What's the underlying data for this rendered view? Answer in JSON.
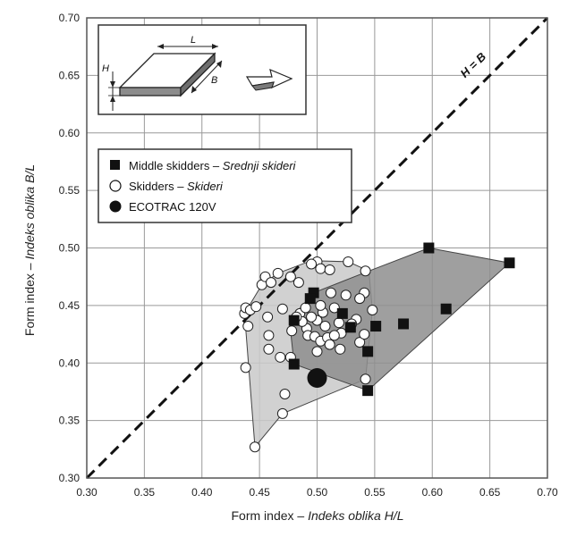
{
  "chart_data": {
    "type": "scatter",
    "xlabel_prefix": "Form index – ",
    "xlabel_italic": "Indeks oblika  H/L",
    "ylabel_prefix": "Form index – ",
    "ylabel_italic": "Indeks oblika  B/L",
    "xlim": [
      0.3,
      0.7
    ],
    "ylim": [
      0.3,
      0.7
    ],
    "xticks": [
      "0.30",
      "0.35",
      "0.40",
      "0.45",
      "0.50",
      "0.55",
      "0.60",
      "0.65",
      "0.70"
    ],
    "yticks": [
      "0.30",
      "0.35",
      "0.40",
      "0.45",
      "0.50",
      "0.55",
      "0.60",
      "0.65",
      "0.70"
    ],
    "grid": true,
    "diagonal_label": "H = B",
    "inset_labels": {
      "H": "H",
      "L": "L",
      "B": "B"
    },
    "legend": [
      {
        "marker": "square",
        "text": "Middle skidders – ",
        "italic": "Srednji skideri"
      },
      {
        "marker": "open-circle",
        "text": "Skidders – ",
        "italic": "Skideri"
      },
      {
        "marker": "filled-circle",
        "text": "ECOTRAC 120V",
        "italic": ""
      }
    ],
    "series": [
      {
        "name": "Middle skidders – Srednji skideri",
        "marker": "square",
        "points": [
          [
            0.597,
            0.5
          ],
          [
            0.667,
            0.487
          ],
          [
            0.612,
            0.447
          ],
          [
            0.575,
            0.434
          ],
          [
            0.551,
            0.432
          ],
          [
            0.529,
            0.431
          ],
          [
            0.544,
            0.41
          ],
          [
            0.48,
            0.399
          ],
          [
            0.544,
            0.376
          ],
          [
            0.48,
            0.437
          ],
          [
            0.497,
            0.461
          ],
          [
            0.494,
            0.456
          ],
          [
            0.522,
            0.443
          ]
        ],
        "hull": [
          [
            0.597,
            0.5
          ],
          [
            0.667,
            0.487
          ],
          [
            0.544,
            0.376
          ],
          [
            0.48,
            0.399
          ],
          [
            0.476,
            0.437
          ],
          [
            0.497,
            0.461
          ],
          [
            0.545,
            0.48
          ]
        ]
      },
      {
        "name": "Skidders – Skideri",
        "marker": "open-circle",
        "points": [
          [
            0.446,
            0.327
          ],
          [
            0.47,
            0.356
          ],
          [
            0.472,
            0.373
          ],
          [
            0.438,
            0.396
          ],
          [
            0.477,
            0.405
          ],
          [
            0.468,
            0.405
          ],
          [
            0.458,
            0.412
          ],
          [
            0.44,
            0.432
          ],
          [
            0.437,
            0.443
          ],
          [
            0.438,
            0.448
          ],
          [
            0.442,
            0.446
          ],
          [
            0.447,
            0.449
          ],
          [
            0.457,
            0.44
          ],
          [
            0.458,
            0.424
          ],
          [
            0.452,
            0.468
          ],
          [
            0.455,
            0.475
          ],
          [
            0.46,
            0.47
          ],
          [
            0.466,
            0.478
          ],
          [
            0.477,
            0.475
          ],
          [
            0.484,
            0.47
          ],
          [
            0.5,
            0.488
          ],
          [
            0.495,
            0.486
          ],
          [
            0.503,
            0.482
          ],
          [
            0.511,
            0.481
          ],
          [
            0.527,
            0.488
          ],
          [
            0.542,
            0.48
          ],
          [
            0.525,
            0.459
          ],
          [
            0.512,
            0.461
          ],
          [
            0.541,
            0.461
          ],
          [
            0.537,
            0.456
          ],
          [
            0.548,
            0.446
          ],
          [
            0.534,
            0.438
          ],
          [
            0.53,
            0.434
          ],
          [
            0.521,
            0.426
          ],
          [
            0.507,
            0.432
          ],
          [
            0.5,
            0.437
          ],
          [
            0.491,
            0.43
          ],
          [
            0.485,
            0.443
          ],
          [
            0.487,
            0.436
          ],
          [
            0.482,
            0.44
          ],
          [
            0.492,
            0.424
          ],
          [
            0.498,
            0.423
          ],
          [
            0.503,
            0.419
          ],
          [
            0.509,
            0.422
          ],
          [
            0.515,
            0.424
          ],
          [
            0.511,
            0.416
          ],
          [
            0.52,
            0.412
          ],
          [
            0.5,
            0.41
          ],
          [
            0.537,
            0.418
          ],
          [
            0.541,
            0.425
          ],
          [
            0.542,
            0.386
          ],
          [
            0.495,
            0.44
          ],
          [
            0.505,
            0.444
          ],
          [
            0.49,
            0.448
          ],
          [
            0.515,
            0.448
          ],
          [
            0.478,
            0.428
          ],
          [
            0.47,
            0.447
          ],
          [
            0.503,
            0.45
          ],
          [
            0.519,
            0.435
          ]
        ],
        "hull": [
          [
            0.446,
            0.327
          ],
          [
            0.437,
            0.443
          ],
          [
            0.452,
            0.468
          ],
          [
            0.466,
            0.478
          ],
          [
            0.495,
            0.489
          ],
          [
            0.527,
            0.488
          ],
          [
            0.545,
            0.48
          ],
          [
            0.548,
            0.446
          ],
          [
            0.542,
            0.386
          ],
          [
            0.47,
            0.356
          ]
        ]
      },
      {
        "name": "ECOTRAC 120V",
        "marker": "filled-circle",
        "points": [
          [
            0.5,
            0.387
          ]
        ]
      }
    ],
    "colors": {
      "middle_fill": "#8e8e8e",
      "skidder_fill": "#c9c9c9",
      "grid": "#999999",
      "frame": "#555555"
    }
  }
}
